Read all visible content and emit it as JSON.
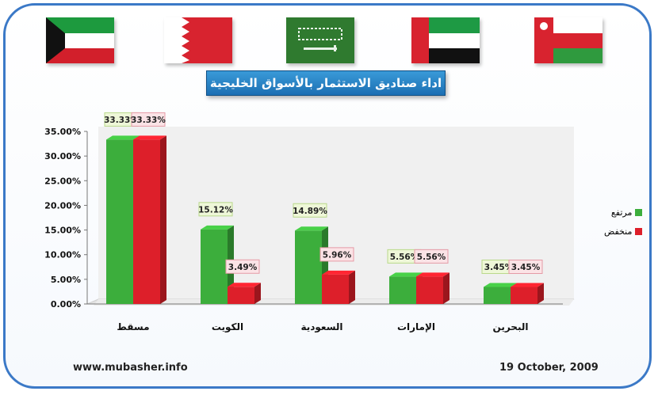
{
  "title": "اداء صناديق الاستثمار بالأسواق الخليجية",
  "footer": {
    "website": "www.mubasher.info",
    "date": "19 October, 2009"
  },
  "flags": [
    {
      "name": "kuwait-flag-icon"
    },
    {
      "name": "bahrain-flag-icon"
    },
    {
      "name": "saudi-arabia-flag-icon"
    },
    {
      "name": "uae-flag-icon"
    },
    {
      "name": "oman-flag-icon"
    }
  ],
  "colors": {
    "rising": "#3cae3c",
    "falling": "#dd1f2a",
    "rising_label_bg": "#eef7d8",
    "falling_label_bg": "#fbe3e6"
  },
  "chart_data": {
    "type": "bar",
    "categories": [
      "مسقط",
      "الكويت",
      "السعودية",
      "الإمارات",
      "البحرين"
    ],
    "series": [
      {
        "name": "مرتفع",
        "values": [
          33.33,
          15.12,
          14.89,
          5.56,
          3.45
        ]
      },
      {
        "name": "منخفض",
        "values": [
          33.33,
          3.49,
          5.96,
          5.56,
          3.45
        ]
      }
    ],
    "data_labels": [
      [
        "33.33%",
        "15.12%",
        "14.89%",
        "5.56%",
        "3.45%"
      ],
      [
        "33.33%",
        "3.49%",
        "5.96%",
        "5.56%",
        "3.45%"
      ]
    ],
    "yticks": [
      "0.00%",
      "5.00%",
      "10.00%",
      "15.00%",
      "20.00%",
      "25.00%",
      "30.00%",
      "35.00%"
    ],
    "ylim": [
      0,
      35
    ],
    "legend_position": "right",
    "grid": false
  }
}
